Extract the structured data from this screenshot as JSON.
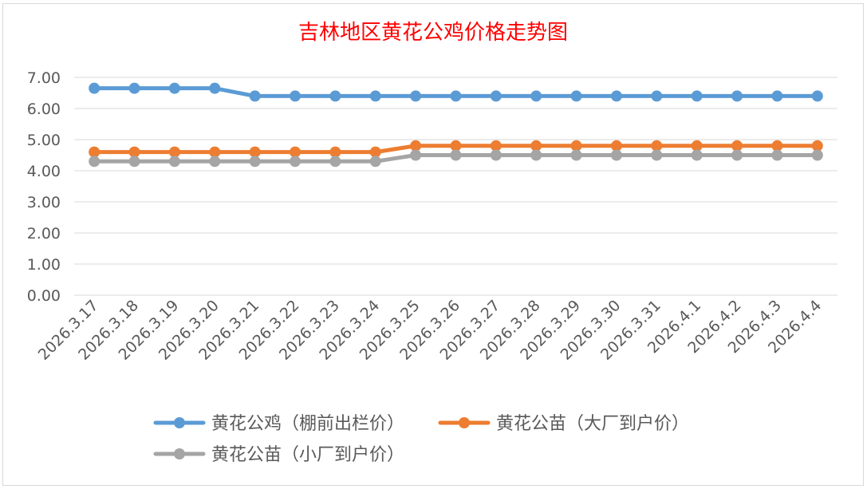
{
  "chart_data": {
    "type": "line",
    "title": "吉林地区黄花公鸡价格走势图",
    "categories": [
      "2026.3.17",
      "2026.3.18",
      "2026.3.19",
      "2026.3.20",
      "2026.3.21",
      "2026.3.22",
      "2026.3.23",
      "2026.3.24",
      "2026.3.25",
      "2026.3.26",
      "2026.3.27",
      "2026.3.28",
      "2026.3.29",
      "2026.3.30",
      "2026.3.31",
      "2026.4.1",
      "2026.4.2",
      "2026.4.3",
      "2026.4.4"
    ],
    "series": [
      {
        "name": "黄花公鸡（棚前出栏价）",
        "color": "#5b9bd5",
        "values": [
          6.65,
          6.65,
          6.65,
          6.65,
          6.4,
          6.4,
          6.4,
          6.4,
          6.4,
          6.4,
          6.4,
          6.4,
          6.4,
          6.4,
          6.4,
          6.4,
          6.4,
          6.4,
          6.4
        ]
      },
      {
        "name": "黄花公苗（大厂到户价）",
        "color": "#ed7d31",
        "values": [
          4.6,
          4.6,
          4.6,
          4.6,
          4.6,
          4.6,
          4.6,
          4.6,
          4.8,
          4.8,
          4.8,
          4.8,
          4.8,
          4.8,
          4.8,
          4.8,
          4.8,
          4.8,
          4.8
        ]
      },
      {
        "name": "黄花公苗（小厂到户价）",
        "color": "#a5a5a5",
        "values": [
          4.3,
          4.3,
          4.3,
          4.3,
          4.3,
          4.3,
          4.3,
          4.3,
          4.5,
          4.5,
          4.5,
          4.5,
          4.5,
          4.5,
          4.5,
          4.5,
          4.5,
          4.5,
          4.5
        ]
      }
    ],
    "ylim": [
      0,
      7
    ],
    "yticks": [
      "0.00",
      "1.00",
      "2.00",
      "3.00",
      "4.00",
      "5.00",
      "6.00",
      "7.00"
    ],
    "xlabel": "",
    "ylabel": "",
    "grid": true,
    "legend": "bottom",
    "title_color": "#ff0000"
  }
}
